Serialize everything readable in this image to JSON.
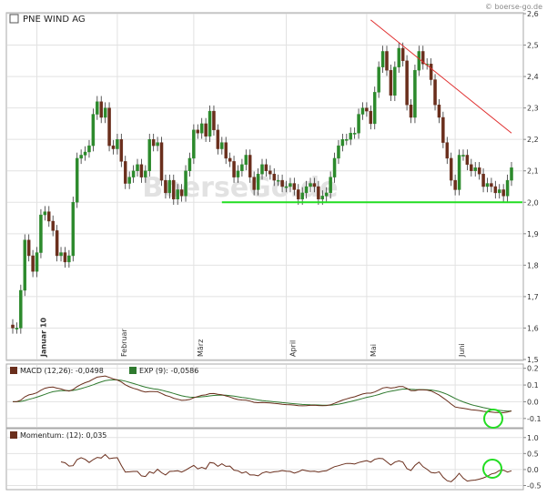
{
  "header": {
    "source_label": "© boerse-go.de",
    "watermark": "BoerseGo.de"
  },
  "chart_data": [
    {
      "type": "candlestick",
      "title": "PNE WIND AG",
      "ylim": [
        1.5,
        2.6
      ],
      "y_ticks": [
        "2,6",
        "2,5",
        "2,4",
        "2,3",
        "2,2",
        "2,1",
        "2,0",
        "1,9",
        "1,8",
        "1,7",
        "1,6",
        "1,5"
      ],
      "x_labels": [
        "Januar 10",
        "Februar",
        "März",
        "April",
        "Mai",
        "Juni"
      ],
      "grid": true,
      "legend": "top-left",
      "annotations": {
        "resistance_line": {
          "color": "#e03030",
          "from_level": 2.58,
          "to_level": 2.22
        },
        "support_line": {
          "color": "#22dd22",
          "level": 2.0
        }
      },
      "close": [
        1.6,
        1.6,
        1.72,
        1.88,
        1.83,
        1.78,
        1.84,
        1.96,
        1.97,
        1.94,
        1.91,
        1.83,
        1.84,
        1.81,
        1.83,
        2.0,
        2.14,
        2.15,
        2.16,
        2.18,
        2.28,
        2.32,
        2.27,
        2.3,
        2.18,
        2.17,
        2.2,
        2.13,
        2.06,
        2.08,
        2.1,
        2.12,
        2.08,
        2.1,
        2.2,
        2.18,
        2.19,
        2.07,
        2.03,
        2.07,
        2.01,
        2.04,
        2.02,
        2.1,
        2.14,
        2.23,
        2.22,
        2.25,
        2.21,
        2.29,
        2.23,
        2.17,
        2.19,
        2.14,
        2.13,
        2.08,
        2.1,
        2.12,
        2.15,
        2.08,
        2.04,
        2.09,
        2.12,
        2.1,
        2.09,
        2.07,
        2.07,
        2.05,
        2.05,
        2.06,
        2.04,
        2.01,
        2.03,
        2.05,
        2.06,
        2.05,
        2.01,
        2.02,
        2.03,
        2.08,
        2.14,
        2.18,
        2.2,
        2.2,
        2.22,
        2.22,
        2.28,
        2.3,
        2.29,
        2.25,
        2.35,
        2.43,
        2.48,
        2.42,
        2.34,
        2.43,
        2.49,
        2.45,
        2.31,
        2.27,
        2.42,
        2.48,
        2.44,
        2.44,
        2.39,
        2.31,
        2.27,
        2.19,
        2.14,
        2.07,
        2.04,
        2.15,
        2.15,
        2.12,
        2.1,
        2.11,
        2.09,
        2.05,
        2.06,
        2.05,
        2.03,
        2.04,
        2.02,
        2.07,
        2.11
      ],
      "macd": {
        "name": "MACD (12,26): -0,0498",
        "color": "#6a2e1c",
        "ylim": [
          -0.15,
          0.22
        ],
        "ticks": [
          "0.2",
          "0.1",
          "0.0",
          "-0.1"
        ]
      },
      "exp": {
        "name": "EXP (9): -0,0586",
        "color": "#2f7a2f"
      },
      "momentum": {
        "name": "Momentum: (12): 0,035",
        "color": "#6a2e1c",
        "ylim": [
          -0.6,
          1.25
        ],
        "ticks": [
          "1.0",
          "0.5",
          "0.0",
          "-0.5"
        ]
      }
    }
  ]
}
